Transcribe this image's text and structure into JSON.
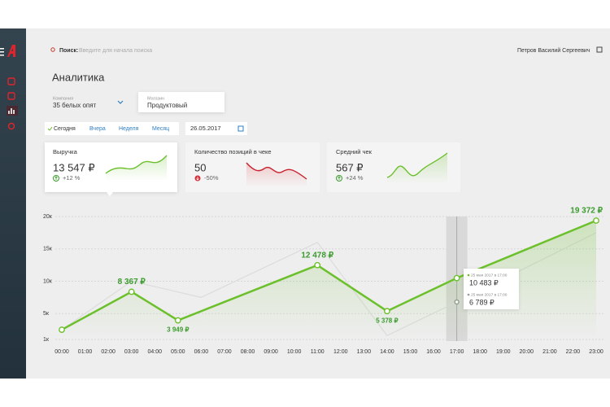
{
  "search": {
    "label": "Поиск:",
    "placeholder": "Введите для начала поиска"
  },
  "user": {
    "name": "Петров Василий Сергеевич"
  },
  "page_title": "Аналитика",
  "filters": {
    "company": {
      "label": "Компания",
      "value": "35 белых опят"
    },
    "store": {
      "label": "Магазин",
      "value": "Продуктовый"
    }
  },
  "tabs": [
    "Сегодня",
    "Вчера",
    "Неделя",
    "Месяц"
  ],
  "date": "26.05.2017",
  "cards": [
    {
      "title": "Выручка",
      "value": "13 547 ₽",
      "change": "+12 %"
    },
    {
      "title": "Количество позиций в чеке",
      "value": "50",
      "change": "-50%"
    },
    {
      "title": "Средний чек",
      "value": "567 ₽",
      "change": "+24 %"
    }
  ],
  "tooltip": {
    "dates": [
      "25 мая 2017 в 17:00",
      "25 мая 2017 в 17:00"
    ]
  },
  "chart_data": {
    "type": "line",
    "xlim": [
      0,
      23
    ],
    "xticks": [
      {
        "value": 0,
        "label": "00:00"
      },
      {
        "value": 1,
        "label": "01:00"
      },
      {
        "value": 2,
        "label": "02:00"
      },
      {
        "value": 3,
        "label": "03:00"
      },
      {
        "value": 4,
        "label": "04:00"
      },
      {
        "value": 5,
        "label": "05:00"
      },
      {
        "value": 6,
        "label": "06:00"
      },
      {
        "value": 7,
        "label": "07:00"
      },
      {
        "value": 8,
        "label": "08:00"
      },
      {
        "value": 9,
        "label": "09:00"
      },
      {
        "value": 10,
        "label": "10:00"
      },
      {
        "value": 11,
        "label": "11:00"
      },
      {
        "value": 12,
        "label": "12:00"
      },
      {
        "value": 13,
        "label": "13:00"
      },
      {
        "value": 14,
        "label": "14:00"
      },
      {
        "value": 15,
        "label": "15:00"
      },
      {
        "value": 16,
        "label": "16:00"
      },
      {
        "value": 17,
        "label": "17:00"
      },
      {
        "value": 18,
        "label": "18:00"
      },
      {
        "value": 19,
        "label": "19:00"
      },
      {
        "value": 20,
        "label": "20:00"
      },
      {
        "value": 21,
        "label": "21:00"
      },
      {
        "value": 22,
        "label": "22:00"
      },
      {
        "value": 23,
        "label": "23:00"
      }
    ],
    "ylim": [
      1000,
      20000
    ],
    "yticks": [
      {
        "value": 1000,
        "label": "1к"
      },
      {
        "value": 5000,
        "label": "5к"
      },
      {
        "value": 10000,
        "label": "10к"
      },
      {
        "value": 15000,
        "label": "15к"
      },
      {
        "value": 20000,
        "label": "20к"
      }
    ],
    "grid": true,
    "series": [
      {
        "color": "#dcdcdc",
        "x": [
          0,
          3,
          6,
          11,
          14,
          17,
          23
        ],
        "values": [
          2500,
          10000,
          7500,
          16000,
          1600,
          6789,
          17500
        ],
        "value_labels": [
          null,
          null,
          null,
          null,
          null,
          "6 789 ₽",
          null
        ]
      },
      {
        "color": "#6cc02c",
        "x": [
          0,
          3,
          5,
          11,
          14,
          17,
          23
        ],
        "values": [
          2500,
          8367,
          3949,
          12478,
          5378,
          10483,
          19372
        ],
        "value_labels": [
          null,
          "8 367 ₽",
          "3 949 ₽",
          "12 478 ₽",
          "5 378 ₽",
          "10 483 ₽",
          "19 372 ₽"
        ]
      }
    ]
  }
}
